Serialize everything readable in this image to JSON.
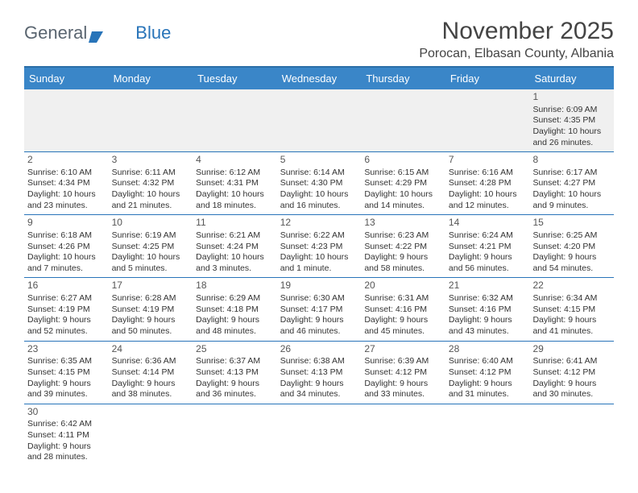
{
  "logo": {
    "word1": "General",
    "word2": "Blue"
  },
  "title": "November 2025",
  "location": "Porocan, Elbasan County, Albania",
  "colors": {
    "header_bg": "#3a86c8",
    "header_border_top": "#2b6ea8",
    "row_border": "#2874b9",
    "first_row_bg": "#f0f0f0",
    "text": "#333333",
    "logo_gray": "#5a6570",
    "logo_blue": "#2874b9"
  },
  "weekdays": [
    "Sunday",
    "Monday",
    "Tuesday",
    "Wednesday",
    "Thursday",
    "Friday",
    "Saturday"
  ],
  "weeks": [
    [
      null,
      null,
      null,
      null,
      null,
      null,
      {
        "n": "1",
        "sr": "Sunrise: 6:09 AM",
        "ss": "Sunset: 4:35 PM",
        "dl": "Daylight: 10 hours and 26 minutes."
      }
    ],
    [
      {
        "n": "2",
        "sr": "Sunrise: 6:10 AM",
        "ss": "Sunset: 4:34 PM",
        "dl": "Daylight: 10 hours and 23 minutes."
      },
      {
        "n": "3",
        "sr": "Sunrise: 6:11 AM",
        "ss": "Sunset: 4:32 PM",
        "dl": "Daylight: 10 hours and 21 minutes."
      },
      {
        "n": "4",
        "sr": "Sunrise: 6:12 AM",
        "ss": "Sunset: 4:31 PM",
        "dl": "Daylight: 10 hours and 18 minutes."
      },
      {
        "n": "5",
        "sr": "Sunrise: 6:14 AM",
        "ss": "Sunset: 4:30 PM",
        "dl": "Daylight: 10 hours and 16 minutes."
      },
      {
        "n": "6",
        "sr": "Sunrise: 6:15 AM",
        "ss": "Sunset: 4:29 PM",
        "dl": "Daylight: 10 hours and 14 minutes."
      },
      {
        "n": "7",
        "sr": "Sunrise: 6:16 AM",
        "ss": "Sunset: 4:28 PM",
        "dl": "Daylight: 10 hours and 12 minutes."
      },
      {
        "n": "8",
        "sr": "Sunrise: 6:17 AM",
        "ss": "Sunset: 4:27 PM",
        "dl": "Daylight: 10 hours and 9 minutes."
      }
    ],
    [
      {
        "n": "9",
        "sr": "Sunrise: 6:18 AM",
        "ss": "Sunset: 4:26 PM",
        "dl": "Daylight: 10 hours and 7 minutes."
      },
      {
        "n": "10",
        "sr": "Sunrise: 6:19 AM",
        "ss": "Sunset: 4:25 PM",
        "dl": "Daylight: 10 hours and 5 minutes."
      },
      {
        "n": "11",
        "sr": "Sunrise: 6:21 AM",
        "ss": "Sunset: 4:24 PM",
        "dl": "Daylight: 10 hours and 3 minutes."
      },
      {
        "n": "12",
        "sr": "Sunrise: 6:22 AM",
        "ss": "Sunset: 4:23 PM",
        "dl": "Daylight: 10 hours and 1 minute."
      },
      {
        "n": "13",
        "sr": "Sunrise: 6:23 AM",
        "ss": "Sunset: 4:22 PM",
        "dl": "Daylight: 9 hours and 58 minutes."
      },
      {
        "n": "14",
        "sr": "Sunrise: 6:24 AM",
        "ss": "Sunset: 4:21 PM",
        "dl": "Daylight: 9 hours and 56 minutes."
      },
      {
        "n": "15",
        "sr": "Sunrise: 6:25 AM",
        "ss": "Sunset: 4:20 PM",
        "dl": "Daylight: 9 hours and 54 minutes."
      }
    ],
    [
      {
        "n": "16",
        "sr": "Sunrise: 6:27 AM",
        "ss": "Sunset: 4:19 PM",
        "dl": "Daylight: 9 hours and 52 minutes."
      },
      {
        "n": "17",
        "sr": "Sunrise: 6:28 AM",
        "ss": "Sunset: 4:19 PM",
        "dl": "Daylight: 9 hours and 50 minutes."
      },
      {
        "n": "18",
        "sr": "Sunrise: 6:29 AM",
        "ss": "Sunset: 4:18 PM",
        "dl": "Daylight: 9 hours and 48 minutes."
      },
      {
        "n": "19",
        "sr": "Sunrise: 6:30 AM",
        "ss": "Sunset: 4:17 PM",
        "dl": "Daylight: 9 hours and 46 minutes."
      },
      {
        "n": "20",
        "sr": "Sunrise: 6:31 AM",
        "ss": "Sunset: 4:16 PM",
        "dl": "Daylight: 9 hours and 45 minutes."
      },
      {
        "n": "21",
        "sr": "Sunrise: 6:32 AM",
        "ss": "Sunset: 4:16 PM",
        "dl": "Daylight: 9 hours and 43 minutes."
      },
      {
        "n": "22",
        "sr": "Sunrise: 6:34 AM",
        "ss": "Sunset: 4:15 PM",
        "dl": "Daylight: 9 hours and 41 minutes."
      }
    ],
    [
      {
        "n": "23",
        "sr": "Sunrise: 6:35 AM",
        "ss": "Sunset: 4:15 PM",
        "dl": "Daylight: 9 hours and 39 minutes."
      },
      {
        "n": "24",
        "sr": "Sunrise: 6:36 AM",
        "ss": "Sunset: 4:14 PM",
        "dl": "Daylight: 9 hours and 38 minutes."
      },
      {
        "n": "25",
        "sr": "Sunrise: 6:37 AM",
        "ss": "Sunset: 4:13 PM",
        "dl": "Daylight: 9 hours and 36 minutes."
      },
      {
        "n": "26",
        "sr": "Sunrise: 6:38 AM",
        "ss": "Sunset: 4:13 PM",
        "dl": "Daylight: 9 hours and 34 minutes."
      },
      {
        "n": "27",
        "sr": "Sunrise: 6:39 AM",
        "ss": "Sunset: 4:12 PM",
        "dl": "Daylight: 9 hours and 33 minutes."
      },
      {
        "n": "28",
        "sr": "Sunrise: 6:40 AM",
        "ss": "Sunset: 4:12 PM",
        "dl": "Daylight: 9 hours and 31 minutes."
      },
      {
        "n": "29",
        "sr": "Sunrise: 6:41 AM",
        "ss": "Sunset: 4:12 PM",
        "dl": "Daylight: 9 hours and 30 minutes."
      }
    ],
    [
      {
        "n": "30",
        "sr": "Sunrise: 6:42 AM",
        "ss": "Sunset: 4:11 PM",
        "dl": "Daylight: 9 hours and 28 minutes."
      },
      null,
      null,
      null,
      null,
      null,
      null
    ]
  ]
}
